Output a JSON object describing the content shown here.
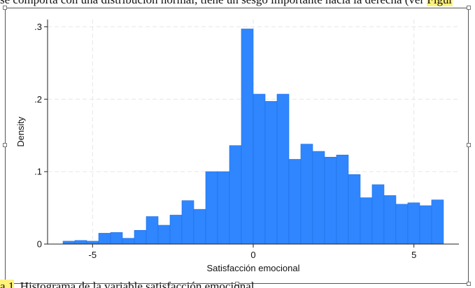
{
  "document": {
    "top_text_before": "se comporta con una distribución normal, tiene un sesgo importante hacia la derecha (ver ",
    "top_text_highlight": "Figur",
    "bottom_text_highlight": "a 1",
    "bottom_text_after": ". Histograma de la variable satisfacción emocional"
  },
  "colors": {
    "bar_fill": "#2f86ff",
    "bar_stroke": "#1e6fe0",
    "grid": "#e6e6e6",
    "axis": "#222222",
    "highlight": "#fff27a"
  },
  "chart_data": {
    "type": "bar",
    "subtype": "histogram",
    "xlabel": "Satisfacción emocional",
    "ylabel": "Density",
    "xlim": [
      -6.4,
      6.4
    ],
    "ylim": [
      0,
      0.31
    ],
    "x_ticks": [
      {
        "value": -5,
        "label": "-5"
      },
      {
        "value": 0,
        "label": "0"
      },
      {
        "value": 5,
        "label": "5"
      }
    ],
    "y_ticks": [
      {
        "value": 0,
        "label": "0"
      },
      {
        "value": 0.1,
        "label": ".1"
      },
      {
        "value": 0.2,
        "label": ".2"
      },
      {
        "value": 0.3,
        "label": ".3"
      }
    ],
    "grid": true,
    "bin_width": 0.37,
    "bins": [
      {
        "x_start": -5.92,
        "density": 0.004
      },
      {
        "x_start": -5.55,
        "density": 0.005
      },
      {
        "x_start": -5.18,
        "density": 0.004
      },
      {
        "x_start": -4.81,
        "density": 0.015
      },
      {
        "x_start": -4.44,
        "density": 0.016
      },
      {
        "x_start": -4.07,
        "density": 0.008
      },
      {
        "x_start": -3.7,
        "density": 0.019
      },
      {
        "x_start": -3.33,
        "density": 0.038
      },
      {
        "x_start": -2.96,
        "density": 0.026
      },
      {
        "x_start": -2.59,
        "density": 0.04
      },
      {
        "x_start": -2.22,
        "density": 0.06
      },
      {
        "x_start": -1.85,
        "density": 0.048
      },
      {
        "x_start": -1.48,
        "density": 0.1
      },
      {
        "x_start": -1.11,
        "density": 0.1
      },
      {
        "x_start": -0.74,
        "density": 0.136
      },
      {
        "x_start": -0.37,
        "density": 0.297
      },
      {
        "x_start": 0.0,
        "density": 0.207
      },
      {
        "x_start": 0.37,
        "density": 0.197
      },
      {
        "x_start": 0.74,
        "density": 0.207
      },
      {
        "x_start": 1.11,
        "density": 0.117
      },
      {
        "x_start": 1.48,
        "density": 0.138
      },
      {
        "x_start": 1.85,
        "density": 0.128
      },
      {
        "x_start": 2.22,
        "density": 0.12
      },
      {
        "x_start": 2.59,
        "density": 0.123
      },
      {
        "x_start": 2.96,
        "density": 0.096
      },
      {
        "x_start": 3.33,
        "density": 0.064
      },
      {
        "x_start": 3.7,
        "density": 0.082
      },
      {
        "x_start": 4.07,
        "density": 0.067
      },
      {
        "x_start": 4.44,
        "density": 0.055
      },
      {
        "x_start": 4.81,
        "density": 0.057
      },
      {
        "x_start": 5.18,
        "density": 0.053
      },
      {
        "x_start": 5.55,
        "density": 0.061
      }
    ]
  }
}
